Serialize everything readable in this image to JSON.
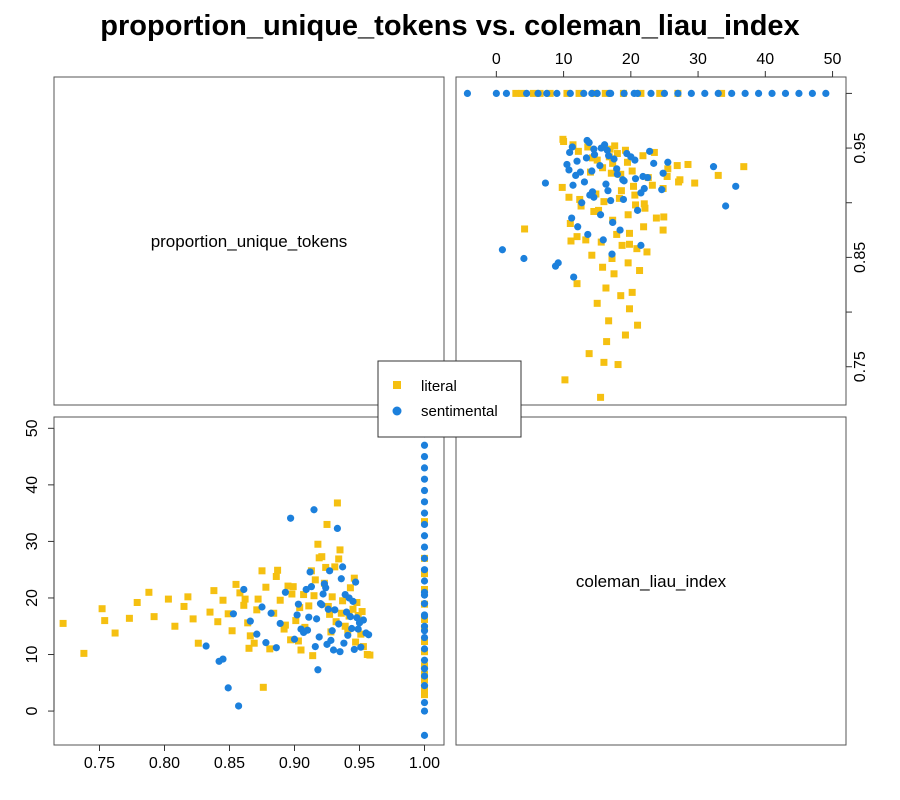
{
  "chart_data": {
    "type": "scatter",
    "title": "proportion_unique_tokens vs. coleman_liau_index",
    "variables": [
      "proportion_unique_tokens",
      "coleman_liau_index"
    ],
    "legend": {
      "position": "center",
      "entries": [
        "literal",
        "sentimental"
      ]
    },
    "colors": {
      "literal": "#F5C011",
      "sentimental": "#1C80DC"
    },
    "markers": {
      "literal": "square",
      "sentimental": "circle"
    },
    "axes": {
      "proportion_unique_tokens": {
        "ticks": [
          "0.75",
          "0.80",
          "0.85",
          "0.90",
          "0.95",
          "1.00"
        ],
        "tick_values": [
          0.75,
          0.8,
          0.85,
          0.9,
          0.95,
          1.0
        ],
        "range": [
          0.715,
          1.015
        ]
      },
      "coleman_liau_index": {
        "ticks": [
          "0",
          "10",
          "20",
          "30",
          "40",
          "50"
        ],
        "tick_values": [
          0,
          10,
          20,
          30,
          40,
          50
        ],
        "range": [
          -6,
          52
        ]
      },
      "proportion_unique_tokens_right_ticks": [
        "0.75",
        "0.85",
        "0.95"
      ],
      "proportion_unique_tokens_right_tick_values": [
        0.75,
        0.85,
        0.95
      ]
    },
    "series": [
      {
        "name": "literal",
        "x": [
          0.722,
          0.738,
          0.752,
          0.754,
          0.762,
          0.773,
          0.779,
          0.788,
          0.792,
          0.803,
          0.808,
          0.815,
          0.818,
          0.822,
          0.826,
          0.835,
          0.838,
          0.841,
          0.845,
          0.849,
          0.852,
          0.855,
          0.858,
          0.861,
          0.864,
          0.866,
          0.869,
          0.872,
          0.875,
          0.878,
          0.881,
          0.884,
          0.886,
          0.889,
          0.892,
          0.895,
          0.898,
          0.901,
          0.903,
          0.905,
          0.908,
          0.911,
          0.914,
          0.916,
          0.918,
          0.921,
          0.923,
          0.925,
          0.927,
          0.929,
          0.931,
          0.933,
          0.935,
          0.937,
          0.939,
          0.941,
          0.943,
          0.945,
          0.947,
          0.949,
          0.951,
          0.953,
          0.956,
          0.958,
          0.876,
          0.887,
          0.893,
          0.907,
          0.913,
          0.919,
          0.928,
          0.934,
          0.946,
          0.952,
          0.865,
          0.871,
          0.899,
          0.904,
          0.915,
          0.924,
          0.936,
          0.942,
          0.948,
          0.862,
          0.897,
          0.926,
          0.932,
          1.0,
          1.0,
          1.0,
          1.0,
          1.0,
          1.0,
          1.0,
          1.0,
          1.0,
          1.0,
          1.0,
          1.0,
          1.0,
          1.0
        ],
        "y": [
          15.5,
          10.2,
          18.1,
          16.0,
          13.8,
          16.4,
          19.2,
          21.0,
          16.7,
          19.8,
          15.0,
          18.5,
          20.2,
          16.3,
          12.0,
          17.5,
          21.3,
          15.8,
          19.6,
          17.2,
          14.2,
          22.4,
          20.9,
          18.7,
          15.6,
          13.3,
          12.0,
          19.8,
          24.8,
          21.9,
          11.0,
          17.3,
          23.8,
          19.6,
          14.5,
          22.1,
          20.7,
          16.0,
          12.4,
          10.8,
          14.8,
          18.6,
          9.8,
          23.2,
          29.5,
          27.3,
          22.6,
          33.0,
          17.1,
          20.2,
          25.5,
          36.8,
          28.5,
          19.5,
          15.0,
          14.3,
          21.8,
          18.0,
          12.2,
          16.9,
          13.6,
          11.4,
          10.0,
          9.9,
          4.2,
          24.9,
          15.2,
          20.6,
          24.8,
          27.1,
          14.0,
          26.9,
          23.5,
          17.6,
          11.1,
          17.9,
          22.0,
          18.3,
          20.4,
          25.4,
          17.3,
          16.8,
          19.2,
          19.8,
          12.6,
          18.5,
          15.8,
          2.9,
          3.8,
          6.5,
          8.0,
          10.5,
          12.3,
          14.7,
          16.2,
          18.9,
          21.5,
          24.3,
          27.0,
          33.5,
          5.5
        ]
      },
      {
        "name": "sentimental",
        "x": [
          0.832,
          0.842,
          0.845,
          0.849,
          0.853,
          0.857,
          0.861,
          0.866,
          0.871,
          0.875,
          0.878,
          0.882,
          0.886,
          0.889,
          0.893,
          0.897,
          0.9,
          0.903,
          0.905,
          0.907,
          0.909,
          0.911,
          0.913,
          0.915,
          0.917,
          0.919,
          0.921,
          0.923,
          0.925,
          0.927,
          0.929,
          0.931,
          0.933,
          0.935,
          0.937,
          0.939,
          0.941,
          0.943,
          0.945,
          0.947,
          0.949,
          0.951,
          0.953,
          0.955,
          0.902,
          0.918,
          0.928,
          0.934,
          0.944,
          0.912,
          0.922,
          0.938,
          0.948,
          0.926,
          0.936,
          0.942,
          0.91,
          0.92,
          0.93,
          0.94,
          0.95,
          0.957,
          0.924,
          0.916,
          0.946,
          1.0,
          1.0,
          1.0,
          1.0,
          1.0,
          1.0,
          1.0,
          1.0,
          1.0,
          1.0,
          1.0,
          1.0,
          1.0,
          1.0,
          1.0,
          1.0,
          1.0,
          1.0,
          1.0,
          1.0,
          1.0,
          1.0,
          1.0,
          1.0,
          1.0,
          1.0,
          1.0,
          1.0,
          1.0,
          1.0
        ],
        "y": [
          11.5,
          8.8,
          9.2,
          4.1,
          17.2,
          0.9,
          21.5,
          15.9,
          13.6,
          18.4,
          12.1,
          17.3,
          11.2,
          15.5,
          21.0,
          34.1,
          12.7,
          18.9,
          14.5,
          13.9,
          21.5,
          16.6,
          22.0,
          35.6,
          16.3,
          13.1,
          18.8,
          22.5,
          11.8,
          24.8,
          14.2,
          17.9,
          32.3,
          10.5,
          25.5,
          20.6,
          13.4,
          16.7,
          19.4,
          22.8,
          14.5,
          11.3,
          16.1,
          13.8,
          17.0,
          7.3,
          12.5,
          15.4,
          14.6,
          24.6,
          20.7,
          12.0,
          16.5,
          18.0,
          23.4,
          20.0,
          14.3,
          19.0,
          10.8,
          17.5,
          15.6,
          13.5,
          21.8,
          11.4,
          10.9,
          -4.3,
          0.0,
          1.5,
          4.5,
          6.2,
          7.5,
          9.0,
          11.0,
          13.0,
          15.0,
          17.0,
          19.0,
          21.0,
          23.0,
          25.0,
          27.0,
          29.0,
          31.0,
          33.0,
          35.0,
          37.0,
          39.0,
          41.0,
          43.0,
          45.0,
          47.0,
          49.0,
          14.2,
          16.8,
          20.5
        ]
      }
    ]
  }
}
